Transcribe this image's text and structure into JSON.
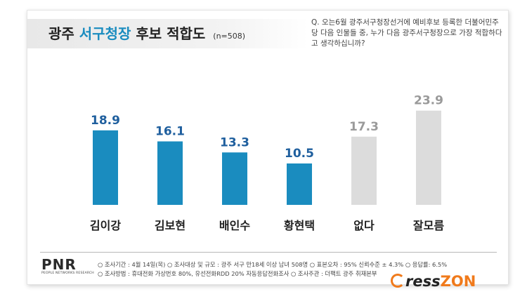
{
  "header": {
    "title_prefix": "광주",
    "title_accent": "서구청장",
    "title_suffix": "후보 적합도",
    "sample_size": "(n=508)",
    "question": "Q. 오는6월 광주서구청장선거에 예비후보 등록한 더불어민주당 다음 인물들 중, 누가 다음 광주서구청장으로 가장 적합하다고 생각하십니까?"
  },
  "chart_data": {
    "type": "bar",
    "categories": [
      "김이강",
      "김보현",
      "배인수",
      "황현택",
      "없다",
      "잘모름"
    ],
    "values": [
      18.9,
      16.1,
      13.3,
      10.5,
      17.3,
      23.9
    ],
    "value_labels": [
      "18.9",
      "16.1",
      "13.3",
      "10.5",
      "17.3",
      "23.9"
    ],
    "title": "",
    "xlabel": "",
    "ylabel": "",
    "ylim": [
      0,
      26
    ],
    "grid": false,
    "bar_colors": [
      "#1a8cbf",
      "#1a8cbf",
      "#1a8cbf",
      "#1a8cbf",
      "#dcdcdc",
      "#dcdcdc"
    ],
    "label_colors": [
      "#1f5f9e",
      "#1f5f9e",
      "#1f5f9e",
      "#1f5f9e",
      "#9a9a9a",
      "#9a9a9a"
    ]
  },
  "footer": {
    "logo": "PNR",
    "logo_sub": "PEOPLE NETWORKS RESEARCH",
    "meta_line1": "○ 조사기간 : 4월 14일(목)  ○ 조사대상 및 규모 : 광주 서구 만18세 이상 남녀 508명  ○ 표본오차 : 95% 신뢰수준 ± 4.3%  ○ 응답률: 6.5%",
    "meta_line2": "○ 조사방법 : 휴대전화 가상번호 80%, 유선전화RDD 20% 자동응답전화조사  ○ 조사주관 : 더팩트 광주 취재본부"
  },
  "watermark": {
    "press": "ress",
    "zon": "ZON"
  }
}
